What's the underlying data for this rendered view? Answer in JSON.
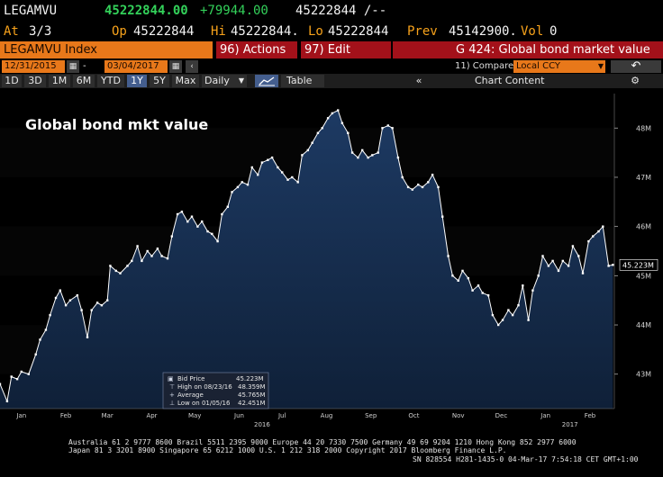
{
  "header": {
    "ticker": "LEGAMVU",
    "last": "45222844.00",
    "change": "+79944.00",
    "bid_ask": "45222844 /--",
    "at_label": "At",
    "at_value": "3/3",
    "open_label": "Op",
    "open_value": "45222844",
    "high_label": "Hi",
    "high_value": "45222844.",
    "low_label": "Lo",
    "low_value": "45222844",
    "prev_label": "Prev",
    "prev_value": "45142900.",
    "vol_label": "Vol",
    "vol_value": "0"
  },
  "toolbar": {
    "index_label": "LEGAMVU Index",
    "actions_label": "96) Actions",
    "edit_label": "97) Edit",
    "gtitle_label": "G 424: Global bond market value"
  },
  "dates": {
    "start": "12/31/2015",
    "end": "03/04/2017",
    "compare_label": "11) Compare",
    "currency": "Local CCY",
    "back_icon": "undo-arrow-icon"
  },
  "periods": {
    "items": [
      "1D",
      "3D",
      "1M",
      "6M",
      "YTD",
      "1Y",
      "5Y",
      "Max"
    ],
    "selected": "1Y",
    "frequency": "Daily",
    "table_label": "Table",
    "chart_content_label": "Chart Content",
    "collapse_icon": "double-chevron-left-icon",
    "gear_icon": "gear-icon"
  },
  "legend": {
    "bid_label": "Bid Price",
    "bid_value": "45.223M",
    "high_label": "High on 08/23/16",
    "high_value": "48.359M",
    "avg_label": "Average",
    "avg_value": "45.765M",
    "low_label": "Low on 01/05/16",
    "low_value": "42.451M"
  },
  "colors": {
    "area_top": "#1d3a63",
    "area_bottom": "#0f2038",
    "line": "#ffffff",
    "accent_orange": "#e8781a",
    "accent_red": "#a3111a",
    "up_green": "#33d15a"
  },
  "chart_data": {
    "type": "area",
    "title": "Global bond mkt value",
    "last_label": "45.223M",
    "y_unit": "M",
    "ylim": [
      42.3,
      48.7
    ],
    "yticks": [
      43,
      44,
      45,
      46,
      47,
      48
    ],
    "ytick_labels": [
      "43M",
      "44M",
      "45M",
      "46M",
      "47M",
      "48M"
    ],
    "x_range": [
      "2015-12-31",
      "2017-03-04"
    ],
    "month_labels": [
      {
        "label": "Jan",
        "date": "2016-01-15"
      },
      {
        "label": "Feb",
        "date": "2016-02-15"
      },
      {
        "label": "Mar",
        "date": "2016-03-15"
      },
      {
        "label": "Apr",
        "date": "2016-04-15"
      },
      {
        "label": "May",
        "date": "2016-05-15"
      },
      {
        "label": "Jun",
        "date": "2016-06-15"
      },
      {
        "label": "Jul",
        "date": "2016-07-15"
      },
      {
        "label": "Aug",
        "date": "2016-08-15"
      },
      {
        "label": "Sep",
        "date": "2016-09-15"
      },
      {
        "label": "Oct",
        "date": "2016-10-15"
      },
      {
        "label": "Nov",
        "date": "2016-11-15"
      },
      {
        "label": "Dec",
        "date": "2016-12-15"
      },
      {
        "label": "Jan",
        "date": "2017-01-15"
      },
      {
        "label": "Feb",
        "date": "2017-02-15"
      }
    ],
    "year_labels": [
      {
        "label": "2016",
        "date": "2016-07-01"
      },
      {
        "label": "2017",
        "date": "2017-02-01"
      }
    ],
    "grid": false,
    "legend_position": "bottom-left",
    "series": [
      {
        "points": [
          [
            "2015-12-31",
            42.8
          ],
          [
            "2016-01-05",
            42.45
          ],
          [
            "2016-01-08",
            42.95
          ],
          [
            "2016-01-12",
            42.9
          ],
          [
            "2016-01-15",
            43.05
          ],
          [
            "2016-01-20",
            43.0
          ],
          [
            "2016-01-25",
            43.4
          ],
          [
            "2016-01-28",
            43.7
          ],
          [
            "2016-02-01",
            43.9
          ],
          [
            "2016-02-04",
            44.2
          ],
          [
            "2016-02-08",
            44.55
          ],
          [
            "2016-02-11",
            44.7
          ],
          [
            "2016-02-15",
            44.4
          ],
          [
            "2016-02-18",
            44.5
          ],
          [
            "2016-02-23",
            44.6
          ],
          [
            "2016-02-26",
            44.3
          ],
          [
            "2016-03-01",
            43.75
          ],
          [
            "2016-03-04",
            44.3
          ],
          [
            "2016-03-08",
            44.45
          ],
          [
            "2016-03-11",
            44.4
          ],
          [
            "2016-03-15",
            44.5
          ],
          [
            "2016-03-17",
            45.2
          ],
          [
            "2016-03-21",
            45.1
          ],
          [
            "2016-03-24",
            45.05
          ],
          [
            "2016-03-29",
            45.2
          ],
          [
            "2016-04-01",
            45.3
          ],
          [
            "2016-04-05",
            45.6
          ],
          [
            "2016-04-08",
            45.3
          ],
          [
            "2016-04-12",
            45.5
          ],
          [
            "2016-04-15",
            45.4
          ],
          [
            "2016-04-19",
            45.55
          ],
          [
            "2016-04-22",
            45.4
          ],
          [
            "2016-04-26",
            45.35
          ],
          [
            "2016-04-29",
            45.8
          ],
          [
            "2016-05-03",
            46.25
          ],
          [
            "2016-05-06",
            46.3
          ],
          [
            "2016-05-10",
            46.1
          ],
          [
            "2016-05-13",
            46.2
          ],
          [
            "2016-05-17",
            46.0
          ],
          [
            "2016-05-20",
            46.1
          ],
          [
            "2016-05-24",
            45.9
          ],
          [
            "2016-05-27",
            45.85
          ],
          [
            "2016-05-31",
            45.7
          ],
          [
            "2016-06-03",
            46.25
          ],
          [
            "2016-06-07",
            46.4
          ],
          [
            "2016-06-10",
            46.7
          ],
          [
            "2016-06-14",
            46.8
          ],
          [
            "2016-06-17",
            46.9
          ],
          [
            "2016-06-21",
            46.85
          ],
          [
            "2016-06-24",
            47.2
          ],
          [
            "2016-06-28",
            47.05
          ],
          [
            "2016-07-01",
            47.3
          ],
          [
            "2016-07-05",
            47.35
          ],
          [
            "2016-07-08",
            47.4
          ],
          [
            "2016-07-12",
            47.2
          ],
          [
            "2016-07-15",
            47.1
          ],
          [
            "2016-07-19",
            46.95
          ],
          [
            "2016-07-22",
            47.0
          ],
          [
            "2016-07-26",
            46.9
          ],
          [
            "2016-07-29",
            47.45
          ],
          [
            "2016-08-02",
            47.55
          ],
          [
            "2016-08-05",
            47.7
          ],
          [
            "2016-08-09",
            47.9
          ],
          [
            "2016-08-12",
            48.0
          ],
          [
            "2016-08-16",
            48.2
          ],
          [
            "2016-08-19",
            48.3
          ],
          [
            "2016-08-23",
            48.36
          ],
          [
            "2016-08-26",
            48.1
          ],
          [
            "2016-08-30",
            47.9
          ],
          [
            "2016-09-02",
            47.5
          ],
          [
            "2016-09-06",
            47.4
          ],
          [
            "2016-09-09",
            47.55
          ],
          [
            "2016-09-13",
            47.4
          ],
          [
            "2016-09-16",
            47.45
          ],
          [
            "2016-09-20",
            47.5
          ],
          [
            "2016-09-23",
            48.0
          ],
          [
            "2016-09-27",
            48.05
          ],
          [
            "2016-09-30",
            48.0
          ],
          [
            "2016-10-04",
            47.4
          ],
          [
            "2016-10-07",
            47.0
          ],
          [
            "2016-10-11",
            46.8
          ],
          [
            "2016-10-14",
            46.75
          ],
          [
            "2016-10-18",
            46.85
          ],
          [
            "2016-10-21",
            46.8
          ],
          [
            "2016-10-25",
            46.9
          ],
          [
            "2016-10-28",
            47.05
          ],
          [
            "2016-11-01",
            46.8
          ],
          [
            "2016-11-04",
            46.2
          ],
          [
            "2016-11-08",
            45.4
          ],
          [
            "2016-11-11",
            45.0
          ],
          [
            "2016-11-15",
            44.9
          ],
          [
            "2016-11-18",
            45.1
          ],
          [
            "2016-11-22",
            44.95
          ],
          [
            "2016-11-25",
            44.7
          ],
          [
            "2016-11-29",
            44.8
          ],
          [
            "2016-12-02",
            44.65
          ],
          [
            "2016-12-06",
            44.6
          ],
          [
            "2016-12-09",
            44.2
          ],
          [
            "2016-12-13",
            44.0
          ],
          [
            "2016-12-16",
            44.1
          ],
          [
            "2016-12-20",
            44.3
          ],
          [
            "2016-12-23",
            44.2
          ],
          [
            "2016-12-27",
            44.4
          ],
          [
            "2016-12-30",
            44.8
          ],
          [
            "2017-01-03",
            44.1
          ],
          [
            "2017-01-06",
            44.7
          ],
          [
            "2017-01-10",
            45.0
          ],
          [
            "2017-01-13",
            45.4
          ],
          [
            "2017-01-17",
            45.2
          ],
          [
            "2017-01-20",
            45.3
          ],
          [
            "2017-01-24",
            45.1
          ],
          [
            "2017-01-27",
            45.3
          ],
          [
            "2017-01-31",
            45.2
          ],
          [
            "2017-02-03",
            45.6
          ],
          [
            "2017-02-07",
            45.4
          ],
          [
            "2017-02-10",
            45.05
          ],
          [
            "2017-02-14",
            45.7
          ],
          [
            "2017-02-17",
            45.8
          ],
          [
            "2017-02-21",
            45.9
          ],
          [
            "2017-02-24",
            46.0
          ],
          [
            "2017-02-28",
            45.2
          ],
          [
            "2017-03-03",
            45.22
          ]
        ]
      }
    ]
  },
  "footer": {
    "line1": "Australia 61 2 9777 8600 Brazil 5511 2395 9000 Europe 44 20 7330 7500 Germany 49 69 9204 1210 Hong Kong 852 2977 6000",
    "line2": "Japan 81 3 3201 8900         Singapore 65 6212 1000     U.S. 1 212 318 2000          Copyright 2017 Bloomberg Finance L.P.",
    "line3": "SN 828554 H281-1435-0 04-Mar-17  7:54:18 CET  GMT+1:00"
  }
}
